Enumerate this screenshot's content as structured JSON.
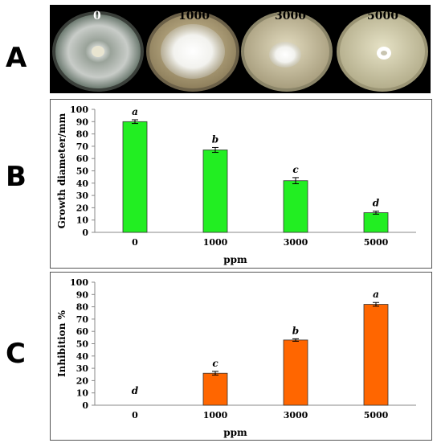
{
  "panels": {
    "A": {
      "letter": "A",
      "plate_labels": [
        "0",
        "1000",
        "3000",
        "5000"
      ]
    },
    "B": {
      "letter": "B"
    },
    "C": {
      "letter": "C"
    }
  },
  "colors": {
    "growth_bar": "#22ee22",
    "inhibition_bar": "#ff6600"
  },
  "chart_data": [
    {
      "type": "bar",
      "panel": "B",
      "categories": [
        "0",
        "1000",
        "3000",
        "5000"
      ],
      "values": [
        90,
        67,
        42,
        16
      ],
      "errors": [
        1.5,
        2,
        2.5,
        1.2
      ],
      "significance_letters": [
        "a",
        "b",
        "c",
        "d"
      ],
      "xlabel": "ppm",
      "ylabel": "Growth diameter/mm",
      "ylim": [
        0,
        100
      ],
      "yticks": [
        0,
        10,
        20,
        30,
        40,
        50,
        60,
        70,
        80,
        90,
        100
      ],
      "grid": false,
      "legend": "none"
    },
    {
      "type": "bar",
      "panel": "C",
      "categories": [
        "0",
        "1000",
        "3000",
        "5000"
      ],
      "values": [
        0,
        26,
        53,
        82
      ],
      "errors": [
        0,
        1.5,
        1,
        1.5
      ],
      "significance_letters": [
        "d",
        "c",
        "b",
        "a"
      ],
      "xlabel": "ppm",
      "ylabel": "Inhibition %",
      "ylim": [
        0,
        100
      ],
      "yticks": [
        0,
        10,
        20,
        30,
        40,
        50,
        60,
        70,
        80,
        90,
        100
      ],
      "grid": false,
      "legend": "none"
    }
  ]
}
